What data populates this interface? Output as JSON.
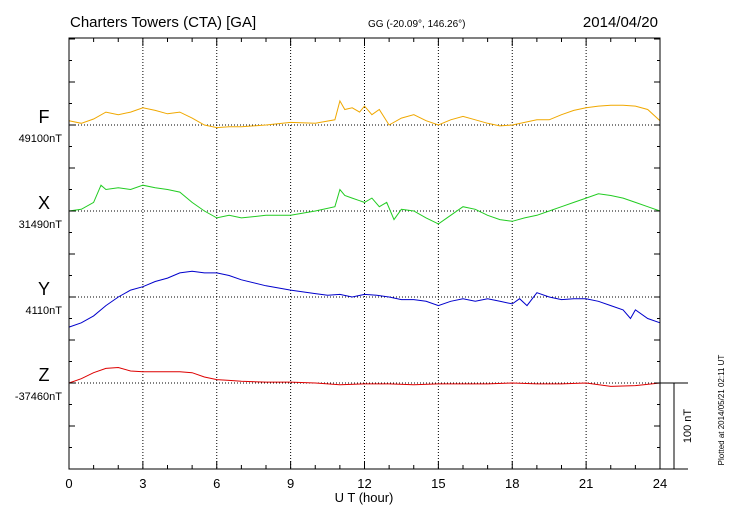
{
  "header": {
    "station": "Charters Towers (CTA)  [GA]",
    "coords": "GG (-20.09°, 146.26°)",
    "date": "2014/04/20"
  },
  "footer": {
    "plotted": "Plotted at 2014/05/21 02:11 UT"
  },
  "chart_data": {
    "type": "line",
    "xlabel": "U T (hour)",
    "xlim": [
      0,
      24
    ],
    "xticks": [
      0,
      3,
      6,
      9,
      12,
      15,
      18,
      21,
      24
    ],
    "scale_bar_label": "100 nT",
    "scale_bar_nT": 100,
    "series": [
      {
        "name": "F",
        "baseline_label": "49100nT",
        "color": "#f0a800",
        "x": [
          0,
          0.5,
          1.0,
          1.5,
          2.0,
          2.5,
          3.0,
          3.5,
          4.0,
          4.5,
          5.0,
          5.5,
          6.0,
          6.5,
          7,
          8,
          9,
          10,
          10.8,
          11.0,
          11.2,
          11.5,
          11.8,
          12.0,
          12.3,
          12.6,
          13.0,
          13.5,
          14,
          14.5,
          15,
          15.5,
          16,
          16.5,
          17,
          17.5,
          18,
          18.5,
          19,
          19.5,
          20,
          20.5,
          21,
          21.5,
          22,
          22.5,
          23,
          23.5,
          24
        ],
        "y": [
          5,
          2,
          7,
          15,
          12,
          15,
          20,
          17,
          13,
          15,
          8,
          0,
          -3,
          -2,
          -2,
          0,
          3,
          2,
          6,
          28,
          18,
          20,
          15,
          22,
          12,
          18,
          0,
          8,
          12,
          5,
          0,
          6,
          10,
          6,
          2,
          -1,
          0,
          3,
          6,
          6,
          12,
          17,
          20,
          22,
          23,
          23,
          22,
          18,
          5
        ]
      },
      {
        "name": "X",
        "baseline_label": "31490nT",
        "color": "#22cc22",
        "x": [
          0,
          0.5,
          1.0,
          1.3,
          1.5,
          2.0,
          2.5,
          3.0,
          3.5,
          4.0,
          4.5,
          5.0,
          5.5,
          6.0,
          6.5,
          7,
          8,
          9,
          10,
          10.8,
          11.0,
          11.2,
          11.5,
          11.8,
          12.0,
          12.3,
          12.6,
          12.9,
          13.2,
          13.5,
          14,
          14.5,
          15,
          15.5,
          16,
          16.5,
          17,
          17.5,
          18,
          18.5,
          19,
          19.5,
          20,
          20.5,
          21,
          21.5,
          22,
          22.5,
          23,
          23.5,
          24
        ],
        "y": [
          0,
          2,
          10,
          30,
          25,
          27,
          25,
          30,
          27,
          25,
          22,
          10,
          0,
          -8,
          -5,
          -8,
          -5,
          -5,
          0,
          5,
          25,
          18,
          15,
          12,
          10,
          15,
          5,
          10,
          -10,
          2,
          0,
          -8,
          -15,
          -5,
          5,
          2,
          -5,
          -10,
          -12,
          -8,
          -5,
          0,
          5,
          10,
          15,
          20,
          18,
          15,
          10,
          5,
          0
        ]
      },
      {
        "name": "Y",
        "baseline_label": "4110nT",
        "color": "#0000cc",
        "x": [
          0,
          0.5,
          1.0,
          1.5,
          2.0,
          2.5,
          3.0,
          3.5,
          4.0,
          4.5,
          5.0,
          5.5,
          6.0,
          6.5,
          7,
          8,
          9,
          10,
          10.5,
          11,
          11.5,
          12,
          12.5,
          13,
          13.5,
          14,
          14.5,
          15,
          15.5,
          16,
          16.5,
          17,
          17.5,
          18,
          18.3,
          18.6,
          19,
          19.5,
          20,
          20.5,
          21,
          21.5,
          22,
          22.5,
          22.8,
          23,
          23.5,
          24
        ],
        "y": [
          -35,
          -30,
          -22,
          -10,
          0,
          8,
          12,
          18,
          22,
          28,
          30,
          28,
          28,
          25,
          20,
          13,
          8,
          4,
          2,
          3,
          0,
          3,
          2,
          0,
          -3,
          -3,
          -5,
          -10,
          -5,
          -2,
          -5,
          -2,
          -5,
          -8,
          -2,
          -10,
          5,
          0,
          -3,
          -2,
          -2,
          -5,
          -10,
          -15,
          -25,
          -15,
          -25,
          -30
        ]
      },
      {
        "name": "Z",
        "baseline_label": "-37460nT",
        "color": "#dd0000",
        "x": [
          0,
          0.5,
          1.0,
          1.5,
          2.0,
          2.5,
          3.0,
          3.5,
          4.0,
          4.5,
          5.0,
          5.5,
          6.0,
          6.5,
          7,
          8,
          9,
          10,
          11,
          12,
          13,
          14,
          15,
          16,
          17,
          18,
          19,
          20,
          21,
          22,
          23,
          24
        ],
        "y": [
          0,
          5,
          12,
          17,
          18,
          14,
          13,
          13,
          13,
          13,
          12,
          7,
          4,
          3,
          2,
          1,
          1,
          0,
          -2,
          -1,
          -1,
          -2,
          -1,
          -1,
          -1,
          0,
          -1,
          -1,
          0,
          -4,
          -3,
          0
        ]
      }
    ]
  }
}
